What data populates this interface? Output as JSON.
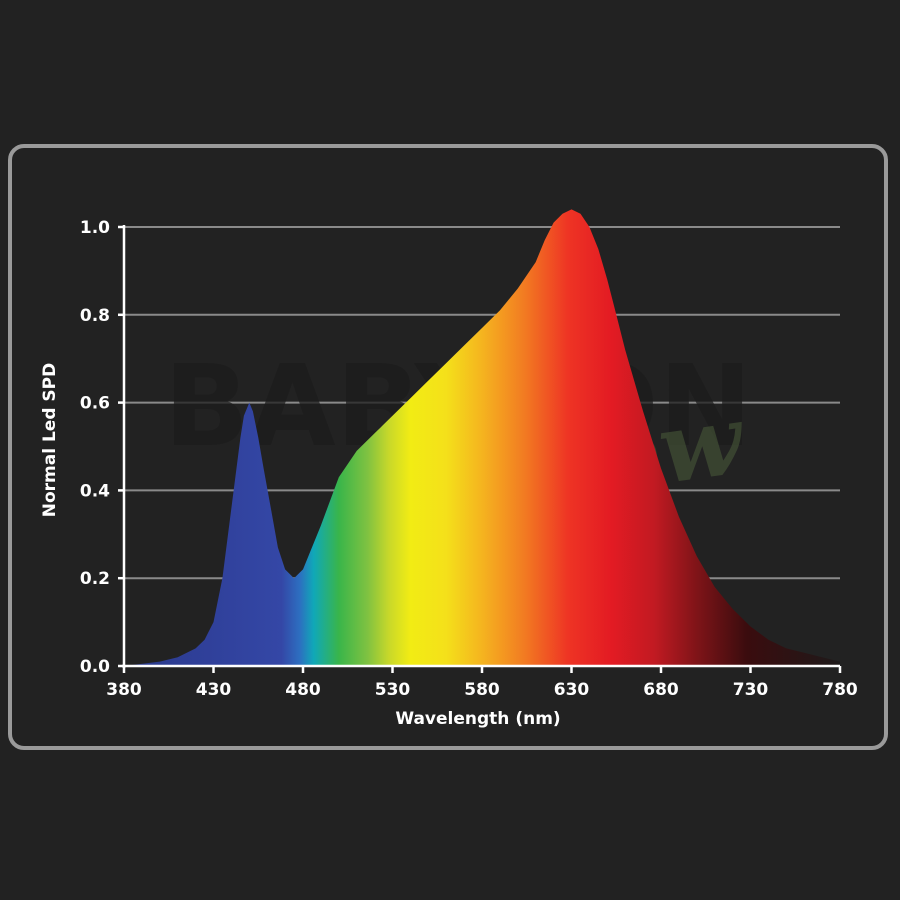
{
  "chart_data": {
    "type": "area",
    "title": "",
    "xlabel": "Wavelength (nm)",
    "ylabel": "Normal Led SPD",
    "xlim": [
      380,
      780
    ],
    "ylim": [
      0,
      1.0
    ],
    "x_ticks": [
      380,
      430,
      480,
      530,
      580,
      630,
      680,
      730,
      780
    ],
    "y_ticks": [
      0.0,
      0.2,
      0.4,
      0.6,
      0.8,
      1.0
    ],
    "y_tick_labels": [
      "0.0",
      "0.2",
      "0.4",
      "0.6",
      "0.8",
      "1.0"
    ],
    "grid": true,
    "fill": "visible-spectrum gradient",
    "series": [
      {
        "x": [
          380,
          400,
          410,
          420,
          425,
          430,
          435,
          440,
          445,
          447,
          450,
          452,
          455,
          458,
          462,
          466,
          470,
          475,
          480,
          490,
          500,
          510,
          520,
          530,
          540,
          550,
          560,
          570,
          580,
          590,
          600,
          610,
          615,
          620,
          625,
          630,
          635,
          640,
          645,
          650,
          655,
          660,
          670,
          680,
          690,
          700,
          710,
          720,
          730,
          740,
          750,
          760,
          770,
          780
        ],
        "y": [
          0.0,
          0.01,
          0.02,
          0.04,
          0.06,
          0.1,
          0.2,
          0.36,
          0.52,
          0.57,
          0.6,
          0.58,
          0.52,
          0.45,
          0.36,
          0.27,
          0.22,
          0.2,
          0.22,
          0.32,
          0.43,
          0.49,
          0.53,
          0.57,
          0.61,
          0.65,
          0.69,
          0.73,
          0.77,
          0.81,
          0.86,
          0.92,
          0.97,
          1.01,
          1.03,
          1.04,
          1.03,
          1.0,
          0.95,
          0.88,
          0.8,
          0.72,
          0.58,
          0.45,
          0.34,
          0.25,
          0.18,
          0.13,
          0.09,
          0.06,
          0.04,
          0.03,
          0.02,
          0.01
        ]
      }
    ]
  },
  "watermark": {
    "main": "BABYLON",
    "sub": "grow"
  }
}
